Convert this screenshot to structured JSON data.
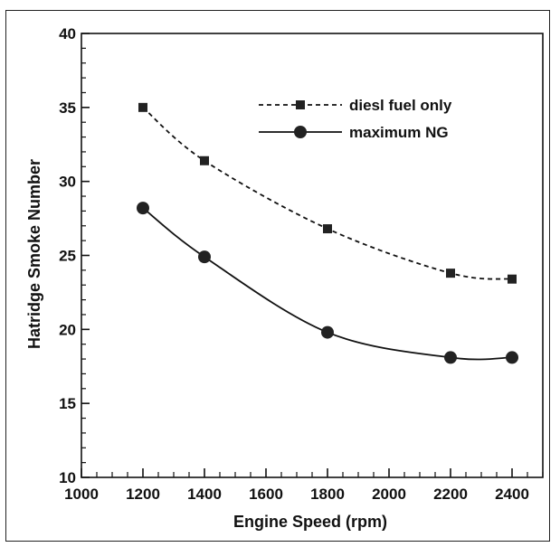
{
  "chart_data": {
    "type": "line",
    "title": "",
    "xlabel": "Engine Speed (rpm)",
    "ylabel": "Hatridge Smoke Number",
    "xlim": [
      1000,
      2500
    ],
    "ylim": [
      10,
      40
    ],
    "x_ticks": [
      1000,
      1200,
      1400,
      1600,
      1800,
      2000,
      2200,
      2400
    ],
    "y_ticks": [
      10,
      15,
      20,
      25,
      30,
      35,
      40
    ],
    "grid": false,
    "legend_position": "top-right",
    "series": [
      {
        "name": "diesl fuel only",
        "marker": "square",
        "line_style": "dashed",
        "x": [
          1200,
          1400,
          1800,
          2200,
          2400
        ],
        "y": [
          35.0,
          31.4,
          26.8,
          23.8,
          23.4
        ]
      },
      {
        "name": "maximum NG",
        "marker": "circle",
        "line_style": "solid",
        "x": [
          1200,
          1400,
          1800,
          2200,
          2400
        ],
        "y": [
          28.2,
          24.9,
          19.8,
          18.1,
          18.1
        ]
      }
    ]
  }
}
